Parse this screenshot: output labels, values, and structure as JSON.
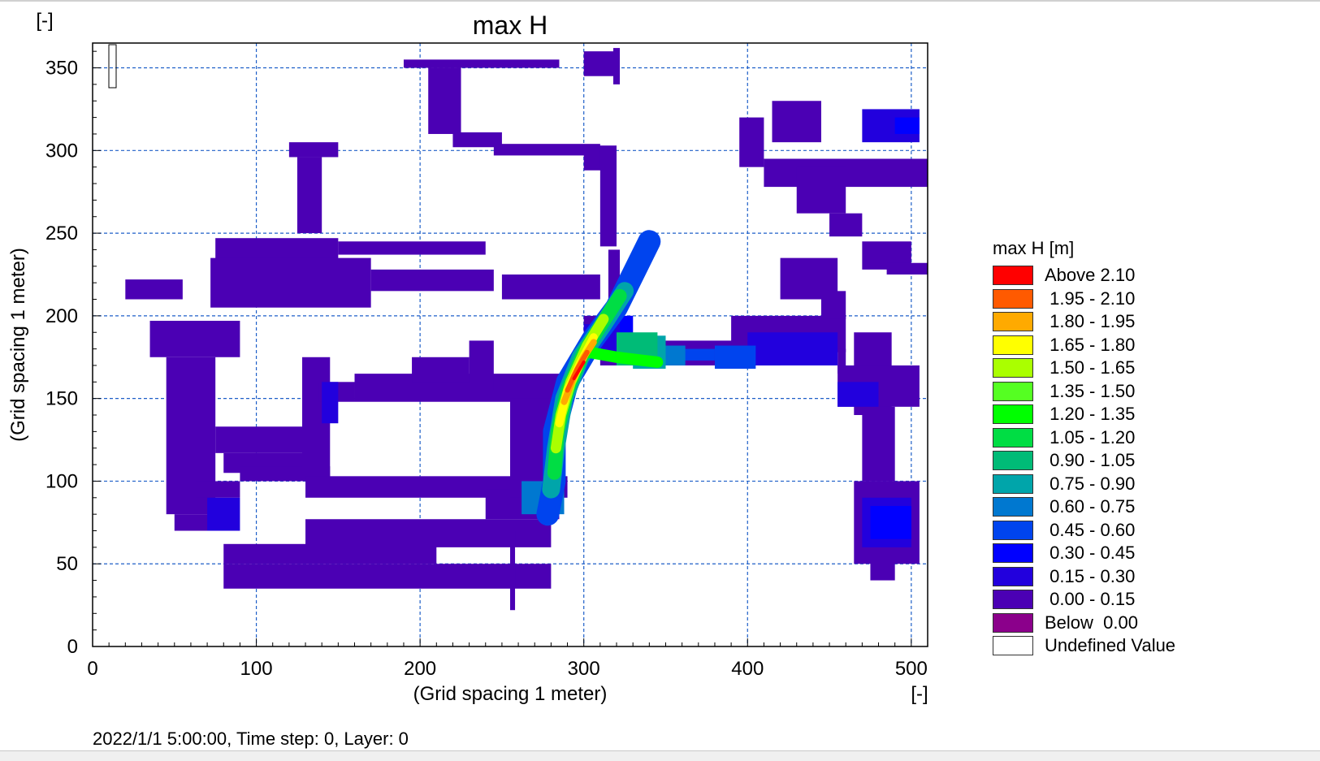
{
  "chart_data": {
    "type": "heatmap",
    "title": "max H",
    "xlabel": "(Grid spacing 1 meter)",
    "ylabel": "(Grid spacing 1 meter)",
    "x_unit": "[-]",
    "y_unit": "[-]",
    "xlim": [
      0,
      510
    ],
    "ylim": [
      0,
      365
    ],
    "x_ticks": [
      0,
      100,
      200,
      300,
      400,
      500
    ],
    "y_ticks": [
      0,
      50,
      100,
      150,
      200,
      250,
      300,
      350
    ],
    "grid": true,
    "legend_placement": "right",
    "legend": {
      "title": "max H [m]",
      "items": [
        {
          "label": "Above 2.10",
          "color": "#ff0000"
        },
        {
          "label": " 1.95 - 2.10",
          "color": "#ff5a00"
        },
        {
          "label": " 1.80 - 1.95",
          "color": "#ffaa00"
        },
        {
          "label": " 1.65 - 1.80",
          "color": "#ffff00"
        },
        {
          "label": " 1.50 - 1.65",
          "color": "#aaff00"
        },
        {
          "label": " 1.35 - 1.50",
          "color": "#55ff22"
        },
        {
          "label": " 1.20 - 1.35",
          "color": "#00ff00"
        },
        {
          "label": " 1.05 - 1.20",
          "color": "#00dd44"
        },
        {
          "label": " 0.90 - 1.05",
          "color": "#00bb77"
        },
        {
          "label": " 0.75 - 0.90",
          "color": "#00a5aa"
        },
        {
          "label": " 0.60 - 0.75",
          "color": "#0078d0"
        },
        {
          "label": " 0.45 - 0.60",
          "color": "#0044ee"
        },
        {
          "label": " 0.30 - 0.45",
          "color": "#0000ff"
        },
        {
          "label": " 0.15 - 0.30",
          "color": "#2200dd"
        },
        {
          "label": " 0.00 - 0.15",
          "color": "#4b00b4"
        },
        {
          "label": "Below  0.00",
          "color": "#8b008b"
        },
        {
          "label": "Undefined Value",
          "color": "#ffffff"
        }
      ]
    },
    "regions": [
      {
        "band": " 0.00 - 0.15",
        "rects": [
          [
            190,
            285,
            350,
            355
          ],
          [
            205,
            225,
            310,
            350
          ],
          [
            300,
            320,
            345,
            360
          ],
          [
            318,
            322,
            340,
            362
          ],
          [
            220,
            250,
            302,
            311
          ],
          [
            245,
            310,
            297,
            304
          ],
          [
            300,
            320,
            288,
            303
          ],
          [
            120,
            150,
            296,
            305
          ],
          [
            125,
            140,
            250,
            296
          ],
          [
            75,
            150,
            232,
            247
          ],
          [
            150,
            240,
            237,
            245
          ],
          [
            20,
            55,
            210,
            222
          ],
          [
            72,
            170,
            205,
            235
          ],
          [
            170,
            245,
            215,
            228
          ],
          [
            250,
            310,
            210,
            225
          ],
          [
            310,
            320,
            242,
            300
          ],
          [
            315,
            322,
            180,
            240
          ],
          [
            35,
            90,
            175,
            197
          ],
          [
            45,
            75,
            80,
            175
          ],
          [
            75,
            130,
            117,
            133
          ],
          [
            80,
            130,
            105,
            117
          ],
          [
            90,
            145,
            100,
            109
          ],
          [
            128,
            145,
            100,
            175
          ],
          [
            138,
            160,
            148,
            160
          ],
          [
            160,
            290,
            148,
            165
          ],
          [
            230,
            245,
            155,
            185
          ],
          [
            195,
            230,
            160,
            175
          ],
          [
            130,
            290,
            90,
            103
          ],
          [
            80,
            280,
            35,
            50
          ],
          [
            80,
            210,
            50,
            62
          ],
          [
            130,
            280,
            60,
            77
          ],
          [
            240,
            285,
            77,
            95
          ],
          [
            255,
            258,
            22,
            70
          ],
          [
            255,
            282,
            90,
            150
          ],
          [
            300,
            330,
            175,
            200
          ],
          [
            310,
            420,
            170,
            185
          ],
          [
            390,
            460,
            178,
            200
          ],
          [
            460,
            455,
            165,
            180
          ],
          [
            395,
            410,
            290,
            320
          ],
          [
            410,
            510,
            278,
            295
          ],
          [
            415,
            445,
            305,
            330
          ],
          [
            430,
            460,
            262,
            290
          ],
          [
            450,
            470,
            248,
            262
          ],
          [
            470,
            500,
            228,
            245
          ],
          [
            485,
            510,
            225,
            232
          ],
          [
            420,
            455,
            210,
            235
          ],
          [
            445,
            460,
            198,
            215
          ],
          [
            465,
            488,
            140,
            190
          ],
          [
            455,
            505,
            145,
            170
          ],
          [
            470,
            490,
            100,
            145
          ],
          [
            475,
            490,
            40,
            100
          ],
          [
            465,
            505,
            50,
            100
          ],
          [
            63,
            90,
            90,
            100
          ],
          [
            50,
            80,
            70,
            80
          ]
        ]
      },
      {
        "band": " 0.15 - 0.30",
        "rects": [
          [
            470,
            505,
            305,
            325
          ],
          [
            140,
            150,
            135,
            160
          ],
          [
            70,
            90,
            70,
            90
          ],
          [
            470,
            500,
            60,
            90
          ],
          [
            300,
            325,
            178,
            195
          ],
          [
            400,
            455,
            170,
            190
          ],
          [
            455,
            480,
            145,
            160
          ]
        ]
      },
      {
        "band": " 0.30 - 0.45",
        "rects": [
          [
            475,
            500,
            65,
            85
          ],
          [
            322,
            330,
            180,
            200
          ],
          [
            490,
            505,
            310,
            320
          ]
        ]
      },
      {
        "band": " 0.45 - 0.60",
        "rects": [
          [
            380,
            405,
            168,
            182
          ],
          [
            360,
            380,
            173,
            180
          ]
        ]
      },
      {
        "band": " 0.60 - 0.75",
        "rects": [
          [
            340,
            362,
            170,
            182
          ],
          [
            262,
            288,
            80,
            100
          ]
        ]
      },
      {
        "band": " 0.75 - 0.90",
        "rects": [
          [
            330,
            350,
            168,
            188
          ]
        ]
      },
      {
        "band": " 0.90 - 1.05",
        "rects": [
          [
            320,
            345,
            170,
            190
          ]
        ]
      }
    ],
    "hotspots": [
      {
        "band": " 0.45 - 0.60",
        "path": [
          [
            278,
            80
          ],
          [
            282,
            100
          ],
          [
            282,
            130
          ],
          [
            290,
            160
          ],
          [
            305,
            185
          ],
          [
            320,
            205
          ],
          [
            330,
            225
          ],
          [
            340,
            245
          ]
        ],
        "width": 28
      },
      {
        "band": " 0.75 - 0.90",
        "path": [
          [
            280,
            95
          ],
          [
            283,
            120
          ],
          [
            288,
            150
          ],
          [
            298,
            175
          ],
          [
            312,
            195
          ],
          [
            325,
            215
          ]
        ],
        "width": 22
      },
      {
        "band": " 1.05 - 1.20",
        "path": [
          [
            282,
            105
          ],
          [
            284,
            130
          ],
          [
            290,
            155
          ],
          [
            300,
            178
          ],
          [
            313,
            198
          ],
          [
            322,
            212
          ]
        ],
        "width": 17
      },
      {
        "band": " 1.20 - 1.35",
        "path": [
          [
            303,
            178
          ],
          [
            320,
            175
          ],
          [
            345,
            172
          ]
        ],
        "width": 14
      },
      {
        "band": " 1.50 - 1.65",
        "path": [
          [
            283,
            120
          ],
          [
            286,
            140
          ],
          [
            292,
            160
          ],
          [
            302,
            182
          ],
          [
            312,
            198
          ]
        ],
        "width": 13
      },
      {
        "band": " 1.65 - 1.80",
        "path": [
          [
            285,
            135
          ],
          [
            290,
            155
          ],
          [
            298,
            172
          ],
          [
            306,
            187
          ]
        ],
        "width": 10
      },
      {
        "band": " 1.80 - 1.95",
        "path": [
          [
            288,
            148
          ],
          [
            294,
            163
          ],
          [
            300,
            175
          ],
          [
            306,
            184
          ]
        ],
        "width": 8
      },
      {
        "band": " 1.95 - 2.10",
        "path": [
          [
            290,
            155
          ],
          [
            296,
            168
          ],
          [
            302,
            178
          ]
        ],
        "width": 6
      },
      {
        "band": "Above 2.10",
        "path": [
          [
            294,
            162
          ],
          [
            300,
            172
          ]
        ],
        "width": 4
      }
    ]
  },
  "status_text": "2022/1/1 5:00:00, Time step: 0, Layer: 0"
}
